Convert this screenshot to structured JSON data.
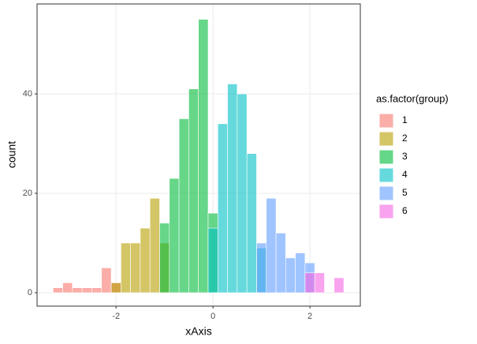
{
  "chart_data": {
    "type": "histogram",
    "x_label": "xAxis",
    "y_label": "count",
    "legend_title": "as.factor(group)",
    "bins": [
      -3.3,
      -3.1,
      -2.9,
      -2.7,
      -2.5,
      -2.3,
      -2.1,
      -1.9,
      -1.7,
      -1.5,
      -1.3,
      -1.1,
      -0.9,
      -0.7,
      -0.5,
      -0.3,
      -0.1,
      0.1,
      0.3,
      0.5,
      0.7,
      0.9,
      1.1,
      1.3,
      1.5,
      1.7,
      1.9,
      2.1,
      2.3,
      2.5,
      2.7
    ],
    "series": [
      {
        "name": "1",
        "color": "#F8766D",
        "values": [
          1,
          2,
          1,
          1,
          1,
          5,
          2,
          0,
          0,
          0,
          0,
          0,
          0,
          0,
          0,
          0,
          0,
          0,
          0,
          0,
          0,
          0,
          0,
          0,
          0,
          0,
          0,
          0,
          0,
          0
        ]
      },
      {
        "name": "2",
        "color": "#B79F00",
        "values": [
          0,
          0,
          0,
          0,
          0,
          0,
          2,
          10,
          10,
          13,
          19,
          10,
          0,
          0,
          0,
          0,
          0,
          0,
          0,
          0,
          0,
          0,
          0,
          0,
          0,
          0,
          0,
          0,
          0,
          0
        ]
      },
      {
        "name": "3",
        "color": "#00BA38",
        "values": [
          0,
          0,
          0,
          0,
          0,
          0,
          0,
          0,
          0,
          0,
          0,
          14,
          23,
          35,
          41,
          55,
          16,
          0,
          0,
          0,
          0,
          0,
          0,
          0,
          0,
          0,
          0,
          0,
          0,
          0
        ]
      },
      {
        "name": "4",
        "color": "#00BFC4",
        "values": [
          0,
          0,
          0,
          0,
          0,
          0,
          0,
          0,
          0,
          0,
          0,
          0,
          0,
          0,
          0,
          0,
          13,
          34,
          42,
          40,
          28,
          9,
          0,
          0,
          0,
          0,
          0,
          0,
          0,
          0
        ]
      },
      {
        "name": "5",
        "color": "#619CFF",
        "values": [
          0,
          0,
          0,
          0,
          0,
          0,
          0,
          0,
          0,
          0,
          0,
          0,
          0,
          0,
          0,
          0,
          0,
          0,
          0,
          0,
          0,
          10,
          19,
          12,
          7,
          8,
          6,
          0,
          0,
          0
        ]
      },
      {
        "name": "6",
        "color": "#F564E3",
        "values": [
          0,
          0,
          0,
          0,
          0,
          0,
          0,
          0,
          0,
          0,
          0,
          0,
          0,
          0,
          0,
          0,
          0,
          0,
          0,
          0,
          0,
          0,
          0,
          0,
          0,
          0,
          4,
          4,
          0,
          3
        ]
      }
    ],
    "opacity": 0.6,
    "xlim": [
      -3.63,
      3.04
    ],
    "ylim": [
      -2.7,
      58.1
    ],
    "xticks": [
      -2,
      0,
      2
    ],
    "yticks": [
      0,
      20,
      40
    ],
    "grid": true
  }
}
